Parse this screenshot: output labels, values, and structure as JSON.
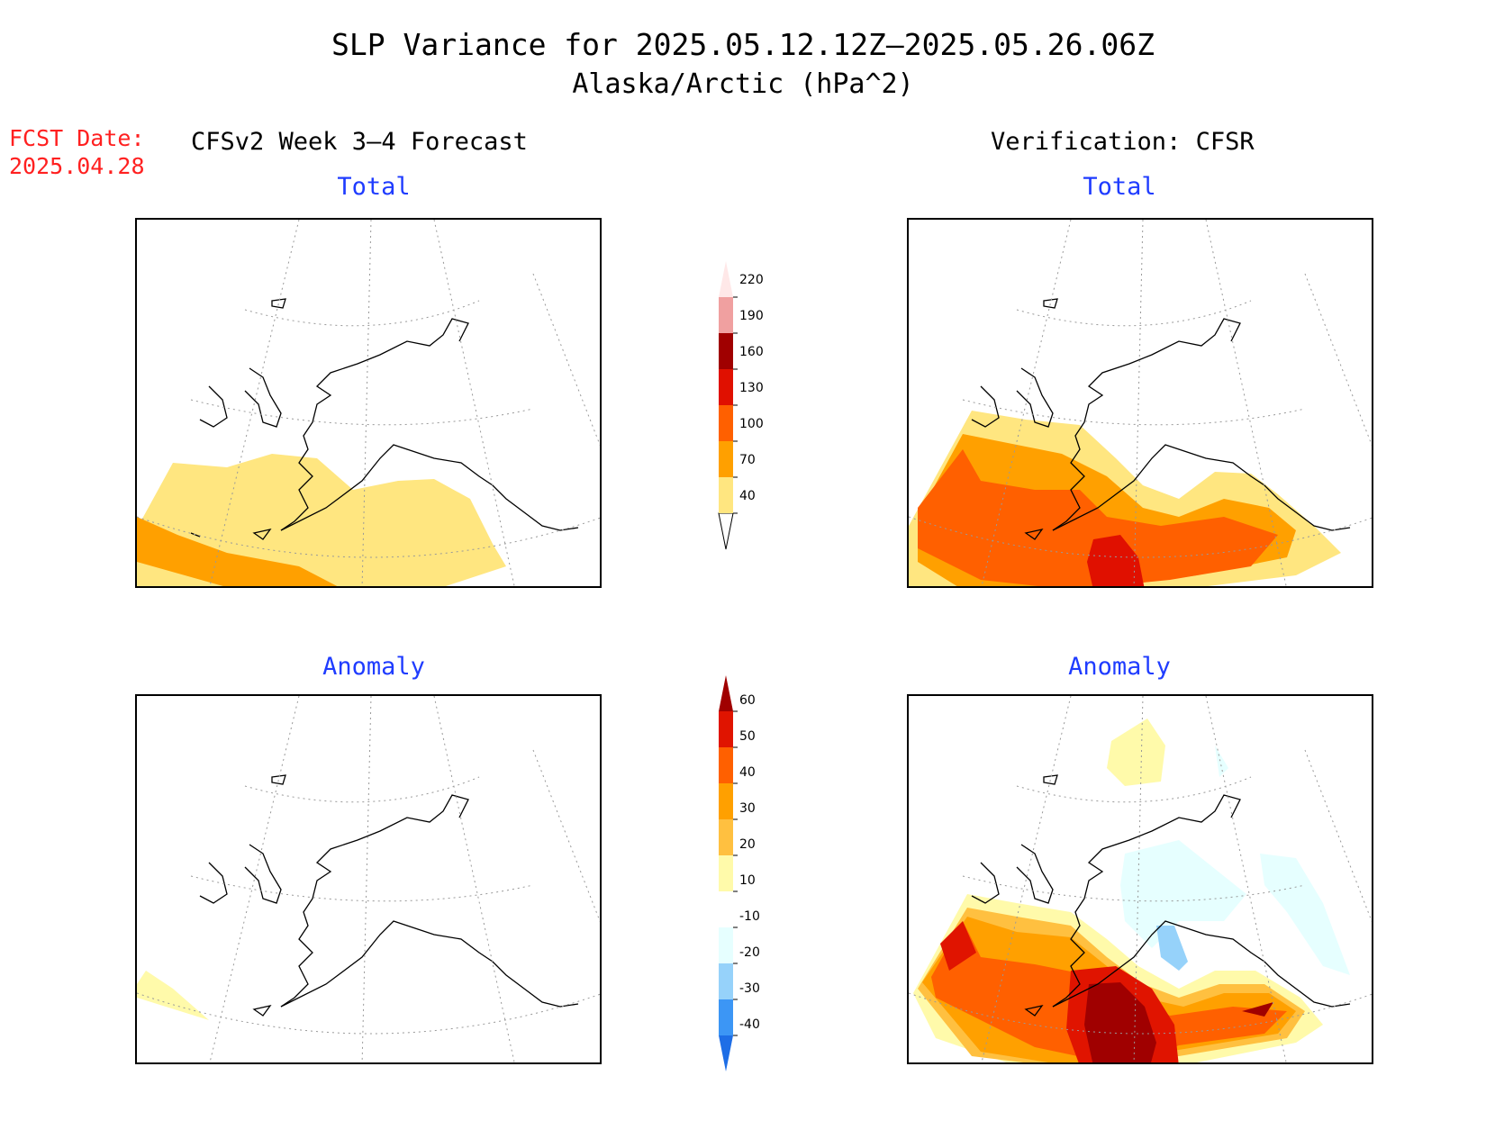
{
  "title": {
    "line1": "SLP Variance for 2025.05.12.12Z—2025.05.26.06Z",
    "line2": "Alaska/Arctic (hPa^2)"
  },
  "fcst_date": {
    "label": "FCST Date:",
    "value": "2025.04.28"
  },
  "columns": {
    "left": "CFSv2 Week 3—4 Forecast",
    "right": "Verification: CFSR"
  },
  "panels": {
    "tl": "Total",
    "tr": "Total",
    "bl": "Anomaly",
    "br": "Anomaly"
  },
  "colorbars": {
    "total": {
      "levels": [
        "40",
        "70",
        "100",
        "130",
        "160",
        "190",
        "220"
      ],
      "colors": [
        "#ffe680",
        "#ffa000",
        "#ff6000",
        "#e01000",
        "#a00000",
        "#f0a0a0",
        "#ffe8e8"
      ]
    },
    "anomaly": {
      "levels": [
        "-40",
        "-30",
        "-20",
        "-10",
        "10",
        "20",
        "30",
        "40",
        "50",
        "60"
      ],
      "colors": [
        "#1e6ee6",
        "#3c96f5",
        "#96d2fa",
        "#e6ffff",
        "#ffffff",
        "#fffaaa",
        "#ffc040",
        "#ffa000",
        "#ff6000",
        "#e01400",
        "#a00000"
      ]
    }
  },
  "colors": {
    "fcst": "#ff2020",
    "panel_title": "#1f3cff"
  }
}
